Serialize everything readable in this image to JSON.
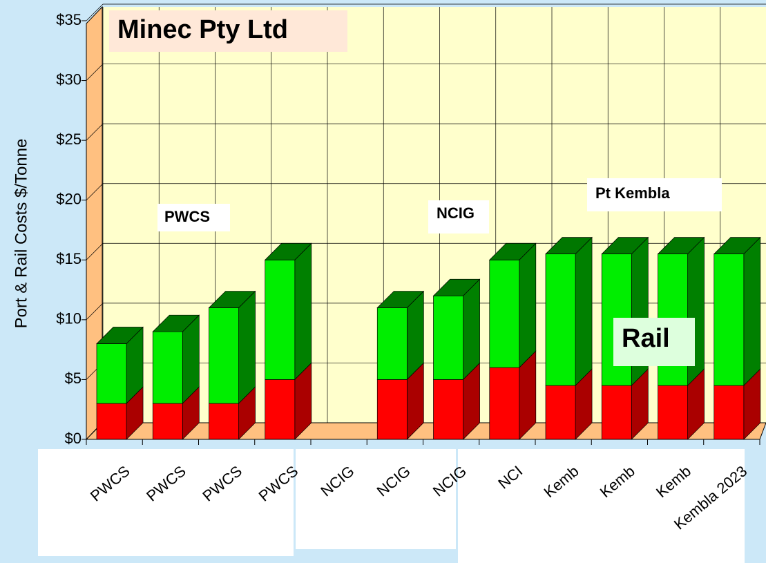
{
  "chart_data": {
    "type": "bar3d_stacked",
    "title": "Minec Pty Ltd",
    "y_axis_label": "Port & Rail Costs $/Tonne",
    "annotations": [
      "PWCS",
      "NCIG",
      "Pt Kembla",
      "Rail"
    ],
    "categories": [
      "PWCS",
      "PWCS",
      "PWCS",
      "PWCS",
      "NCIG",
      "NCIG",
      "NCIG",
      "NCI",
      "Kemb",
      "Kemb",
      "Kemb",
      "Kembla 2023"
    ],
    "series": [
      {
        "color": "#ff0000",
        "side_color": "#aa0000",
        "values": [
          3,
          3,
          3,
          5,
          null,
          5,
          5,
          6,
          4.5,
          4.5,
          4.5,
          4.5
        ]
      },
      {
        "color": "#00ee00",
        "side_color": "#008000",
        "top_color": "#007700",
        "values": [
          5,
          6,
          8,
          10,
          null,
          6,
          7,
          9,
          11,
          11,
          11,
          11
        ]
      }
    ],
    "ylim": [
      0,
      35
    ],
    "yticks": [
      {
        "value": 0,
        "label": "$0"
      },
      {
        "value": 5,
        "label": "$5"
      },
      {
        "value": 10,
        "label": "$10"
      },
      {
        "value": 15,
        "label": "$15"
      },
      {
        "value": 20,
        "label": "$20"
      },
      {
        "value": 25,
        "label": "$25"
      },
      {
        "value": 30,
        "label": "$30"
      },
      {
        "value": 35,
        "label": "$35"
      }
    ],
    "grid": true
  }
}
